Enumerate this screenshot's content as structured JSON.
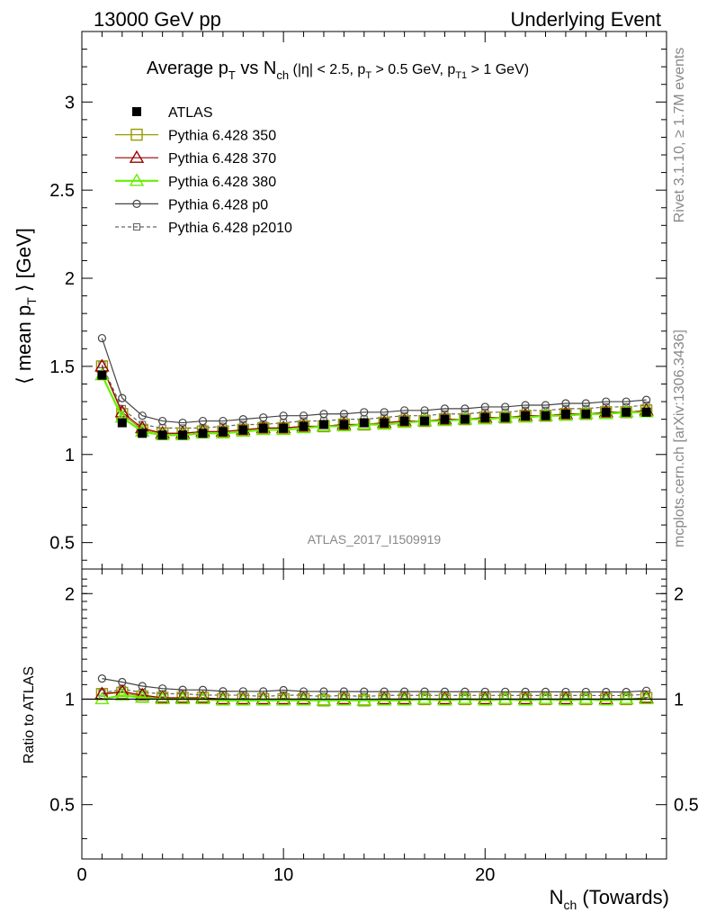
{
  "header": {
    "left": "13000 GeV pp",
    "right": "Underlying Event"
  },
  "side": {
    "rivet": "Rivet 3.1.10, ≥ 1.7M events",
    "mcplots": "mcplots.cern.ch [arXiv:1306.3436]"
  },
  "watermark": "ATLAS_2017_I1509919",
  "title": {
    "main": "Average p",
    "main_sub": "T",
    "vs": " vs N",
    "vs_sub": "ch",
    "cuts_a": " (|η| < 2.5, p",
    "cuts_a_sub": "T",
    "cuts_b": " > 0.5 GeV, p",
    "cuts_b_sub": "T1",
    "cuts_c": " > 1 GeV)"
  },
  "axes": {
    "ylabel_a": "⟨ mean p",
    "ylabel_sub": "T",
    "ylabel_b": " ⟩ [GeV]",
    "ratio_ylabel": "Ratio to ATLAS",
    "xlabel_main": "N",
    "xlabel_sub": "ch",
    "xlabel_rest": " (Towards)"
  },
  "colors": {
    "atlas": "#000000",
    "p350": "#999900",
    "p370": "#990000",
    "p380": "#66ee00",
    "p0": "#444444",
    "p2010": "#666666"
  },
  "chart_data": {
    "type": "line",
    "x": [
      1,
      2,
      3,
      4,
      5,
      6,
      7,
      8,
      9,
      10,
      11,
      12,
      13,
      14,
      15,
      16,
      17,
      18,
      19,
      20,
      21,
      22,
      23,
      24,
      25,
      26,
      27,
      28
    ],
    "xlim": [
      0,
      29
    ],
    "ylim": [
      0.35,
      3.4
    ],
    "ratio_ylim": [
      0.35,
      2.35
    ],
    "main_yticks": [
      "0.5",
      "1",
      "1.5",
      "2",
      "2.5",
      "3"
    ],
    "ratio_yticks": [
      "0.5",
      "1",
      "2"
    ],
    "xticks": [
      "0",
      "10",
      "20"
    ],
    "legend_position": "top-left",
    "series": [
      {
        "name": "ATLAS",
        "style": "data",
        "marker": "filled-square",
        "values": [
          1.45,
          1.18,
          1.12,
          1.11,
          1.11,
          1.12,
          1.13,
          1.14,
          1.15,
          1.15,
          1.16,
          1.17,
          1.17,
          1.18,
          1.18,
          1.19,
          1.19,
          1.2,
          1.2,
          1.21,
          1.21,
          1.22,
          1.22,
          1.23,
          1.23,
          1.24,
          1.24,
          1.24
        ]
      },
      {
        "name": "Pythia 6.428 350",
        "style": "solid",
        "marker": "open-square",
        "values": [
          1.5,
          1.23,
          1.14,
          1.12,
          1.12,
          1.13,
          1.13,
          1.14,
          1.15,
          1.15,
          1.16,
          1.16,
          1.17,
          1.17,
          1.18,
          1.19,
          1.19,
          1.2,
          1.2,
          1.21,
          1.21,
          1.22,
          1.22,
          1.23,
          1.23,
          1.24,
          1.24,
          1.25
        ]
      },
      {
        "name": "Pythia 6.428 370",
        "style": "solid",
        "marker": "open-triangle",
        "values": [
          1.5,
          1.24,
          1.15,
          1.12,
          1.12,
          1.13,
          1.13,
          1.14,
          1.15,
          1.15,
          1.16,
          1.16,
          1.17,
          1.17,
          1.18,
          1.19,
          1.19,
          1.2,
          1.2,
          1.21,
          1.21,
          1.22,
          1.22,
          1.23,
          1.23,
          1.24,
          1.24,
          1.25
        ]
      },
      {
        "name": "Pythia 6.428 380",
        "style": "solid",
        "marker": "open-triangle",
        "values": [
          1.45,
          1.21,
          1.13,
          1.11,
          1.11,
          1.12,
          1.12,
          1.13,
          1.14,
          1.14,
          1.15,
          1.16,
          1.16,
          1.17,
          1.17,
          1.18,
          1.19,
          1.19,
          1.2,
          1.2,
          1.21,
          1.21,
          1.22,
          1.22,
          1.23,
          1.23,
          1.24,
          1.24
        ]
      },
      {
        "name": "Pythia 6.428 p0",
        "style": "solid",
        "marker": "open-circle",
        "values": [
          1.66,
          1.32,
          1.22,
          1.19,
          1.18,
          1.19,
          1.19,
          1.2,
          1.21,
          1.22,
          1.22,
          1.23,
          1.23,
          1.24,
          1.24,
          1.25,
          1.25,
          1.26,
          1.26,
          1.27,
          1.27,
          1.28,
          1.28,
          1.29,
          1.29,
          1.3,
          1.3,
          1.31
        ]
      },
      {
        "name": "Pythia 6.428 p2010",
        "style": "dashed",
        "marker": "open-square-small",
        "values": [
          1.51,
          1.26,
          1.17,
          1.15,
          1.15,
          1.15,
          1.16,
          1.17,
          1.17,
          1.18,
          1.19,
          1.19,
          1.2,
          1.2,
          1.21,
          1.22,
          1.22,
          1.23,
          1.23,
          1.24,
          1.24,
          1.25,
          1.25,
          1.26,
          1.26,
          1.27,
          1.27,
          1.28
        ]
      }
    ]
  }
}
